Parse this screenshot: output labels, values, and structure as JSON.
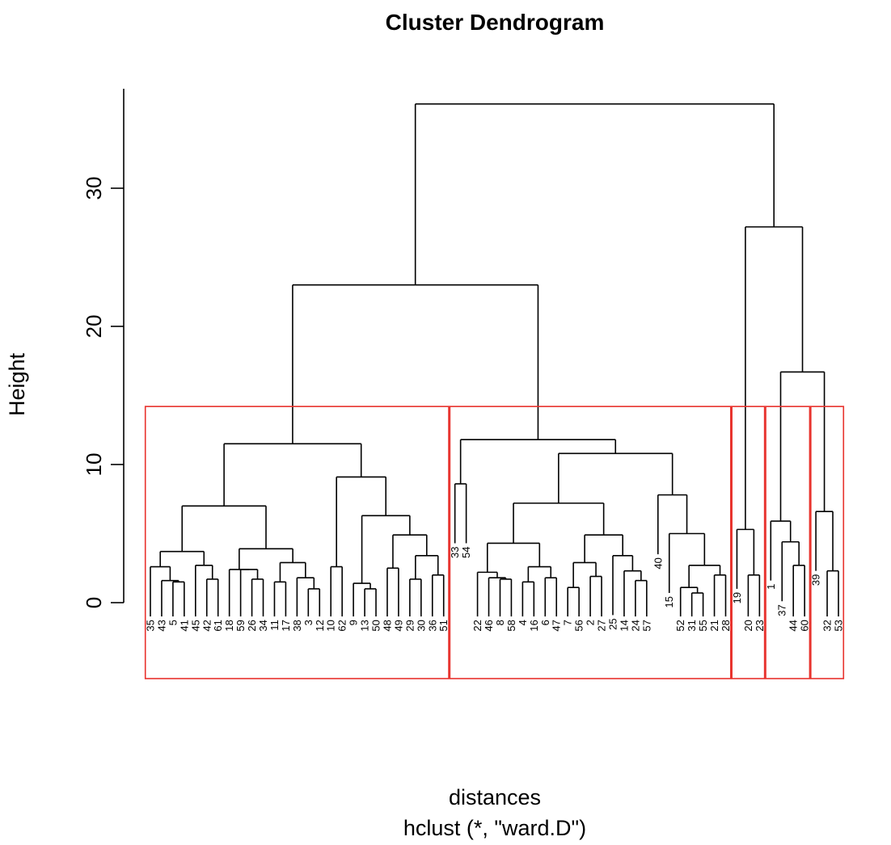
{
  "chart_data": {
    "type": "dendrogram",
    "title": "Cluster Dendrogram",
    "ylabel": "Height",
    "xlabel": "distances",
    "sublabel": "hclust (*, \"ward.D\")",
    "ylim": [
      0,
      36
    ],
    "yticks": [
      0,
      10,
      20,
      30
    ],
    "cut_height": 14.2,
    "num_clusters": 5,
    "cluster_color": "#e8322d",
    "leaf_order": [
      "35",
      "43",
      "5",
      "41",
      "45",
      "42",
      "61",
      "18",
      "59",
      "26",
      "34",
      "11",
      "17",
      "38",
      "3",
      "12",
      "10",
      "62",
      "9",
      "13",
      "50",
      "48",
      "49",
      "29",
      "30",
      "36",
      "51",
      "33",
      "54",
      "22",
      "46",
      "8",
      "58",
      "4",
      "16",
      "6",
      "47",
      "7",
      "56",
      "2",
      "27",
      "25",
      "14",
      "24",
      "57",
      "40",
      "15",
      "52",
      "31",
      "55",
      "21",
      "28",
      "19",
      "20",
      "23",
      "1",
      "37",
      "44",
      "60",
      "39",
      "32",
      "53"
    ],
    "merges": [
      {
        "left": "5",
        "right": "41",
        "height": 1.5,
        "id": "a1"
      },
      {
        "left": "43",
        "right": "a1",
        "height": 1.6,
        "id": "a2"
      },
      {
        "left": "35",
        "right": "a2",
        "height": 2.6,
        "id": "a3"
      },
      {
        "left": "42",
        "right": "61",
        "height": 1.7,
        "id": "b1"
      },
      {
        "left": "45",
        "right": "b1",
        "height": 2.7,
        "id": "b2"
      },
      {
        "left": "a3",
        "right": "b2",
        "height": 3.7,
        "id": "A"
      },
      {
        "left": "26",
        "right": "34",
        "height": 1.7,
        "id": "c1"
      },
      {
        "left": "59",
        "right": "c1",
        "height": 2.4,
        "id": "c2"
      },
      {
        "left": "18",
        "right": "c2",
        "height": 2.4,
        "id": "c3"
      },
      {
        "left": "11",
        "right": "17",
        "height": 1.5,
        "id": "d1"
      },
      {
        "left": "3",
        "right": "12",
        "height": 1.0,
        "id": "d2"
      },
      {
        "left": "38",
        "right": "d2",
        "height": 1.8,
        "id": "d3"
      },
      {
        "left": "d1",
        "right": "d3",
        "height": 2.9,
        "id": "D"
      },
      {
        "left": "c3",
        "right": "D",
        "height": 3.9,
        "id": "CD"
      },
      {
        "left": "A",
        "right": "CD",
        "height": 7.0,
        "id": "L1"
      },
      {
        "left": "10",
        "right": "62",
        "height": 2.6,
        "id": "e1"
      },
      {
        "left": "13",
        "right": "50",
        "height": 1.0,
        "id": "f1"
      },
      {
        "left": "9",
        "right": "f1",
        "height": 1.4,
        "id": "f2"
      },
      {
        "left": "48",
        "right": "49",
        "height": 2.5,
        "id": "g1"
      },
      {
        "left": "29",
        "right": "30",
        "height": 1.7,
        "id": "h1"
      },
      {
        "left": "36",
        "right": "51",
        "height": 2.0,
        "id": "h2"
      },
      {
        "left": "h1",
        "right": "h2",
        "height": 3.4,
        "id": "h3"
      },
      {
        "left": "g1",
        "right": "h3",
        "height": 4.9,
        "id": "G"
      },
      {
        "left": "f2",
        "right": "G",
        "height": 6.3,
        "id": "FG"
      },
      {
        "left": "e1",
        "right": "FG",
        "height": 9.1,
        "id": "R1"
      },
      {
        "left": "L1",
        "right": "R1",
        "height": 11.5,
        "id": "K1"
      },
      {
        "left": "33",
        "right": "54",
        "height": 8.6,
        "id": "j1"
      },
      {
        "left": "8",
        "right": "58",
        "height": 1.7,
        "id": "k1"
      },
      {
        "left": "46",
        "right": "k1",
        "height": 1.8,
        "id": "k2"
      },
      {
        "left": "22",
        "right": "k2",
        "height": 2.2,
        "id": "k3"
      },
      {
        "left": "4",
        "right": "16",
        "height": 1.5,
        "id": "m1"
      },
      {
        "left": "6",
        "right": "47",
        "height": 1.8,
        "id": "m2"
      },
      {
        "left": "m1",
        "right": "m2",
        "height": 2.6,
        "id": "m3"
      },
      {
        "left": "k3",
        "right": "m3",
        "height": 4.3,
        "id": "KM"
      },
      {
        "left": "7",
        "right": "56",
        "height": 1.1,
        "id": "n1"
      },
      {
        "left": "2",
        "right": "27",
        "height": 1.9,
        "id": "n2"
      },
      {
        "left": "n1",
        "right": "n2",
        "height": 2.9,
        "id": "n3"
      },
      {
        "left": "24",
        "right": "57",
        "height": 1.6,
        "id": "p1"
      },
      {
        "left": "14",
        "right": "p1",
        "height": 2.3,
        "id": "p2"
      },
      {
        "left": "25",
        "right": "p2",
        "height": 3.4,
        "id": "p3"
      },
      {
        "left": "n3",
        "right": "p3",
        "height": 4.9,
        "id": "NP"
      },
      {
        "left": "KM",
        "right": "NP",
        "height": 7.2,
        "id": "KMNP"
      },
      {
        "left": "31",
        "right": "55",
        "height": 0.7,
        "id": "q1"
      },
      {
        "left": "52",
        "right": "q1",
        "height": 1.1,
        "id": "q2"
      },
      {
        "left": "21",
        "right": "28",
        "height": 2.0,
        "id": "q3"
      },
      {
        "left": "q2",
        "right": "q3",
        "height": 2.7,
        "id": "q4"
      },
      {
        "left": "15",
        "right": "q4",
        "height": 5.0,
        "id": "q5"
      },
      {
        "left": "40",
        "right": "q5",
        "height": 7.8,
        "id": "Q"
      },
      {
        "left": "KMNP",
        "right": "Q",
        "height": 10.8,
        "id": "W1"
      },
      {
        "left": "j1",
        "right": "W1",
        "height": 11.8,
        "id": "K2"
      },
      {
        "left": "K1",
        "right": "K2",
        "height": 23.0,
        "id": "BIG"
      },
      {
        "left": "20",
        "right": "23",
        "height": 2.0,
        "id": "s1"
      },
      {
        "left": "19",
        "right": "s1",
        "height": 5.3,
        "id": "K3"
      },
      {
        "left": "44",
        "right": "60",
        "height": 2.7,
        "id": "t1"
      },
      {
        "left": "37",
        "right": "t1",
        "height": 4.4,
        "id": "t2"
      },
      {
        "left": "1",
        "right": "t2",
        "height": 5.9,
        "id": "K4"
      },
      {
        "left": "32",
        "right": "53",
        "height": 2.3,
        "id": "u1"
      },
      {
        "left": "39",
        "right": "u1",
        "height": 6.6,
        "id": "K5"
      },
      {
        "left": "K4",
        "right": "K5",
        "height": 16.7,
        "id": "RR"
      },
      {
        "left": "K3",
        "right": "RR",
        "height": 27.2,
        "id": "RIGHT"
      },
      {
        "left": "BIG",
        "right": "RIGHT",
        "height": 36.1,
        "id": "ROOT"
      }
    ],
    "cluster_boxes": [
      {
        "first": "35",
        "last": "51"
      },
      {
        "first": "33",
        "last": "28"
      },
      {
        "first": "19",
        "last": "23"
      },
      {
        "first": "1",
        "last": "60"
      },
      {
        "first": "39",
        "last": "53"
      }
    ]
  }
}
